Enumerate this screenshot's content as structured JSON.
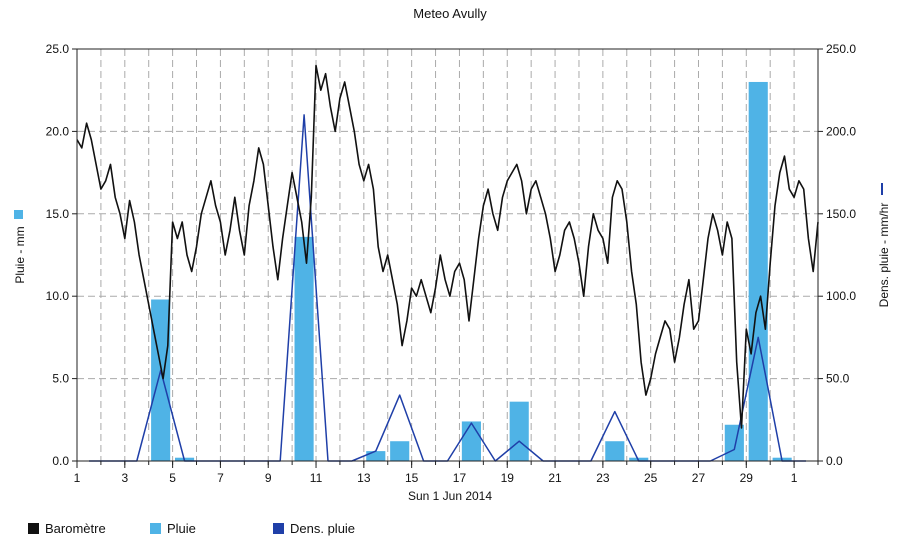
{
  "chart_data": {
    "type": "bar+line",
    "title": "Meteo  Avully",
    "xlabel": "Sun 1 Jun 2014",
    "ylabel_left": "Pluie - mm",
    "ylabel_right": "Dens. pluie - mm/hr",
    "x_ticks": [
      "1",
      "3",
      "5",
      "7",
      "9",
      "11",
      "13",
      "15",
      "17",
      "19",
      "21",
      "23",
      "25",
      "27",
      "29",
      "1"
    ],
    "y_left_ticks": [
      "0.0",
      "5.0",
      "10.0",
      "15.0",
      "20.0",
      "25.0"
    ],
    "y_right_ticks": [
      "0.0",
      "50.0",
      "100.0",
      "150.0",
      "200.0",
      "250.0"
    ],
    "ylim_left": [
      0,
      25
    ],
    "ylim_right": [
      0,
      250
    ],
    "xlim": [
      1,
      32
    ],
    "grid": true,
    "legend_position": "bottom-left",
    "legend": [
      {
        "label": "Baromètre",
        "color": "#111111"
      },
      {
        "label": "Pluie",
        "color": "#4fb3e6"
      },
      {
        "label": "Dens. pluie",
        "color": "#1f3fa8"
      }
    ],
    "series": [
      {
        "name": "Pluie",
        "kind": "bar",
        "axis": "left",
        "color": "#4fb3e6",
        "points": [
          {
            "day": 4.5,
            "value": 9.8
          },
          {
            "day": 5.5,
            "value": 0.2
          },
          {
            "day": 10.5,
            "value": 13.6
          },
          {
            "day": 13.5,
            "value": 0.6
          },
          {
            "day": 14.5,
            "value": 1.2
          },
          {
            "day": 17.5,
            "value": 2.4
          },
          {
            "day": 19.5,
            "value": 3.6
          },
          {
            "day": 23.5,
            "value": 1.2
          },
          {
            "day": 24.5,
            "value": 0.2
          },
          {
            "day": 28.5,
            "value": 2.2
          },
          {
            "day": 29.5,
            "value": 23.0
          },
          {
            "day": 30.5,
            "value": 0.2
          }
        ]
      },
      {
        "name": "Dens. pluie",
        "kind": "line",
        "axis": "right",
        "color": "#1f3fa8",
        "points": [
          [
            1.5,
            0
          ],
          [
            3.5,
            0
          ],
          [
            4.5,
            55
          ],
          [
            5.5,
            0
          ],
          [
            9.5,
            0
          ],
          [
            10.5,
            210
          ],
          [
            11.5,
            0
          ],
          [
            12.5,
            0
          ],
          [
            13.5,
            6
          ],
          [
            14.5,
            40
          ],
          [
            15.5,
            0
          ],
          [
            16.5,
            0
          ],
          [
            17.5,
            23
          ],
          [
            18.5,
            0
          ],
          [
            19.5,
            12
          ],
          [
            20.5,
            0
          ],
          [
            22.5,
            0
          ],
          [
            23.5,
            30
          ],
          [
            24.5,
            0
          ],
          [
            27.5,
            0
          ],
          [
            28.5,
            7
          ],
          [
            29.5,
            75
          ],
          [
            30.5,
            0
          ],
          [
            31.5,
            0
          ]
        ]
      },
      {
        "name": "Baromètre",
        "kind": "line",
        "axis": "left",
        "color": "#111111",
        "points": [
          [
            1.0,
            19.5
          ],
          [
            1.2,
            19.0
          ],
          [
            1.4,
            20.5
          ],
          [
            1.6,
            19.5
          ],
          [
            1.8,
            18.0
          ],
          [
            2.0,
            16.5
          ],
          [
            2.2,
            17.0
          ],
          [
            2.4,
            18.0
          ],
          [
            2.6,
            16.0
          ],
          [
            2.8,
            15.0
          ],
          [
            3.0,
            13.5
          ],
          [
            3.2,
            15.8
          ],
          [
            3.4,
            14.5
          ],
          [
            3.6,
            12.5
          ],
          [
            3.8,
            11.0
          ],
          [
            4.0,
            9.5
          ],
          [
            4.2,
            8.0
          ],
          [
            4.4,
            6.5
          ],
          [
            4.6,
            5.0
          ],
          [
            4.8,
            7.0
          ],
          [
            5.0,
            14.5
          ],
          [
            5.2,
            13.5
          ],
          [
            5.4,
            14.5
          ],
          [
            5.6,
            12.5
          ],
          [
            5.8,
            11.5
          ],
          [
            6.0,
            13.0
          ],
          [
            6.2,
            15.0
          ],
          [
            6.4,
            16.0
          ],
          [
            6.6,
            17.0
          ],
          [
            6.8,
            15.5
          ],
          [
            7.0,
            14.5
          ],
          [
            7.2,
            12.5
          ],
          [
            7.4,
            14.0
          ],
          [
            7.6,
            16.0
          ],
          [
            7.8,
            14.0
          ],
          [
            8.0,
            12.5
          ],
          [
            8.2,
            15.5
          ],
          [
            8.4,
            17.0
          ],
          [
            8.6,
            19.0
          ],
          [
            8.8,
            18.0
          ],
          [
            9.0,
            15.5
          ],
          [
            9.2,
            13.0
          ],
          [
            9.4,
            11.0
          ],
          [
            9.6,
            13.5
          ],
          [
            9.8,
            15.5
          ],
          [
            10.0,
            17.5
          ],
          [
            10.2,
            16.0
          ],
          [
            10.4,
            14.5
          ],
          [
            10.6,
            12.0
          ],
          [
            10.8,
            16.0
          ],
          [
            11.0,
            24.0
          ],
          [
            11.2,
            22.5
          ],
          [
            11.4,
            23.5
          ],
          [
            11.6,
            21.5
          ],
          [
            11.8,
            20.0
          ],
          [
            12.0,
            22.0
          ],
          [
            12.2,
            23.0
          ],
          [
            12.4,
            21.5
          ],
          [
            12.6,
            20.0
          ],
          [
            12.8,
            18.0
          ],
          [
            13.0,
            17.0
          ],
          [
            13.2,
            18.0
          ],
          [
            13.4,
            16.5
          ],
          [
            13.6,
            13.0
          ],
          [
            13.8,
            11.5
          ],
          [
            14.0,
            12.5
          ],
          [
            14.2,
            11.0
          ],
          [
            14.4,
            9.5
          ],
          [
            14.6,
            7.0
          ],
          [
            14.8,
            8.5
          ],
          [
            15.0,
            10.5
          ],
          [
            15.2,
            10.0
          ],
          [
            15.4,
            11.0
          ],
          [
            15.6,
            10.0
          ],
          [
            15.8,
            9.0
          ],
          [
            16.0,
            10.5
          ],
          [
            16.2,
            12.5
          ],
          [
            16.4,
            11.0
          ],
          [
            16.6,
            10.0
          ],
          [
            16.8,
            11.5
          ],
          [
            17.0,
            12.0
          ],
          [
            17.2,
            11.0
          ],
          [
            17.4,
            8.5
          ],
          [
            17.6,
            11.0
          ],
          [
            17.8,
            13.5
          ],
          [
            18.0,
            15.5
          ],
          [
            18.2,
            16.5
          ],
          [
            18.4,
            15.0
          ],
          [
            18.6,
            14.0
          ],
          [
            18.8,
            16.0
          ],
          [
            19.0,
            17.0
          ],
          [
            19.2,
            17.5
          ],
          [
            19.4,
            18.0
          ],
          [
            19.6,
            17.0
          ],
          [
            19.8,
            15.0
          ],
          [
            20.0,
            16.5
          ],
          [
            20.2,
            17.0
          ],
          [
            20.4,
            16.0
          ],
          [
            20.6,
            15.0
          ],
          [
            20.8,
            13.5
          ],
          [
            21.0,
            11.5
          ],
          [
            21.2,
            12.5
          ],
          [
            21.4,
            14.0
          ],
          [
            21.6,
            14.5
          ],
          [
            21.8,
            13.5
          ],
          [
            22.0,
            12.0
          ],
          [
            22.2,
            10.0
          ],
          [
            22.4,
            13.0
          ],
          [
            22.6,
            15.0
          ],
          [
            22.8,
            14.0
          ],
          [
            23.0,
            13.5
          ],
          [
            23.2,
            12.0
          ],
          [
            23.4,
            16.0
          ],
          [
            23.6,
            17.0
          ],
          [
            23.8,
            16.5
          ],
          [
            24.0,
            14.5
          ],
          [
            24.2,
            11.5
          ],
          [
            24.4,
            9.5
          ],
          [
            24.6,
            6.0
          ],
          [
            24.8,
            4.0
          ],
          [
            25.0,
            5.0
          ],
          [
            25.2,
            6.5
          ],
          [
            25.4,
            7.5
          ],
          [
            25.6,
            8.5
          ],
          [
            25.8,
            8.0
          ],
          [
            26.0,
            6.0
          ],
          [
            26.2,
            7.5
          ],
          [
            26.4,
            9.5
          ],
          [
            26.6,
            11.0
          ],
          [
            26.8,
            8.0
          ],
          [
            27.0,
            8.5
          ],
          [
            27.2,
            11.0
          ],
          [
            27.4,
            13.5
          ],
          [
            27.6,
            15.0
          ],
          [
            27.8,
            14.0
          ],
          [
            28.0,
            12.5
          ],
          [
            28.2,
            14.5
          ],
          [
            28.4,
            13.5
          ],
          [
            28.6,
            6.0
          ],
          [
            28.8,
            2.0
          ],
          [
            29.0,
            8.0
          ],
          [
            29.2,
            6.5
          ],
          [
            29.4,
            9.0
          ],
          [
            29.6,
            10.0
          ],
          [
            29.8,
            8.0
          ],
          [
            30.0,
            12.0
          ],
          [
            30.2,
            15.5
          ],
          [
            30.4,
            17.5
          ],
          [
            30.6,
            18.5
          ],
          [
            30.8,
            16.5
          ],
          [
            31.0,
            16.0
          ],
          [
            31.2,
            17.0
          ],
          [
            31.4,
            16.5
          ],
          [
            31.6,
            13.5
          ],
          [
            31.8,
            11.5
          ],
          [
            32.0,
            14.5
          ]
        ]
      }
    ]
  }
}
